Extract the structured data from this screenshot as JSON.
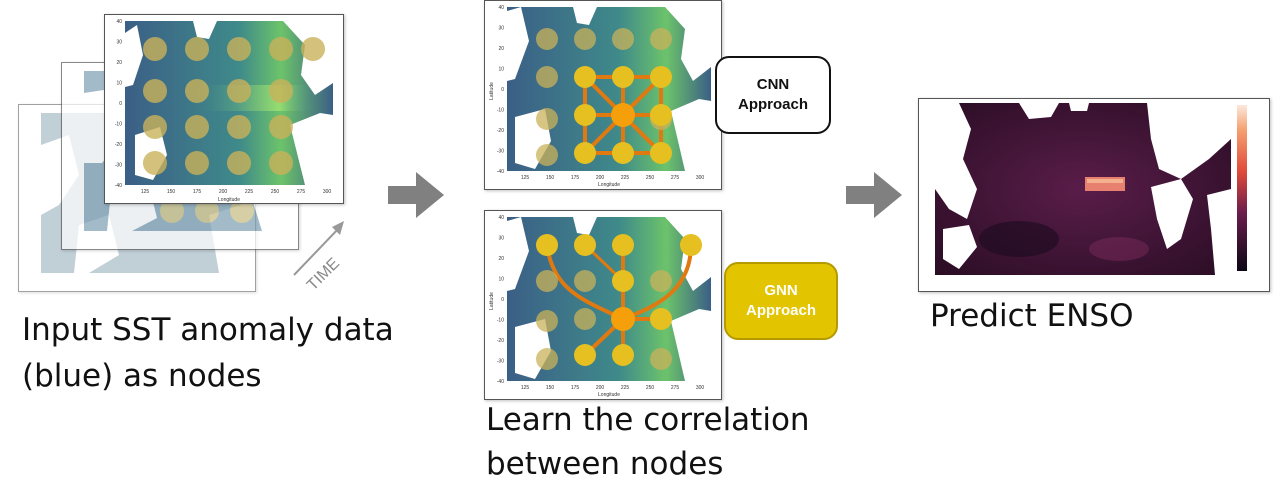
{
  "captions": {
    "input_line1": "Input SST anomaly data",
    "input_line2": "(blue) as nodes",
    "learn_line1": "Learn the correlation",
    "learn_line2": "between nodes",
    "predict": "Predict ENSO"
  },
  "time_label": "TIME",
  "approaches": {
    "cnn_line1": "CNN",
    "cnn_line2": "Approach",
    "gnn_line1": "GNN",
    "gnn_line2": "Approach"
  },
  "map_axes": {
    "xlabel": "Longitude",
    "ylabel": "Latitude",
    "x_ticks": [
      "125",
      "150",
      "175",
      "200",
      "225",
      "250",
      "275",
      "300"
    ],
    "y_ticks": [
      "40",
      "30",
      "20",
      "10",
      "0",
      "-10",
      "-20",
      "-30",
      "-40"
    ]
  },
  "colors": {
    "ocean": "#3f6f8c",
    "node_front": "#e6c020",
    "node_active": "#f5a00a",
    "edge": "#e07a10",
    "arrow": "#808080",
    "gnn_box": "#e2c400",
    "anomaly": "#3d1430"
  }
}
